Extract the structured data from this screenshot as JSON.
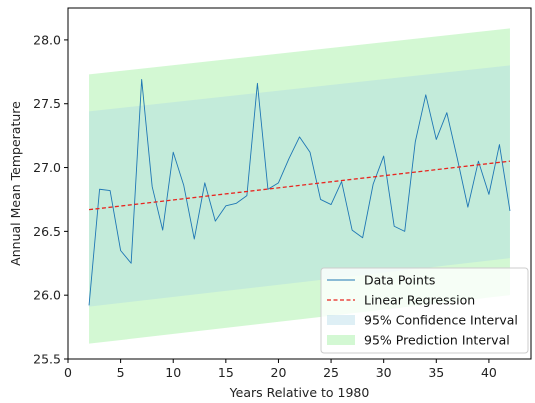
{
  "chart_data": {
    "type": "line",
    "xlabel": "Years Relative to 1980",
    "ylabel": "Annual Mean Temperature",
    "xlim": [
      0,
      44
    ],
    "ylim": [
      25.5,
      28.25
    ],
    "xticks": [
      0,
      5,
      10,
      15,
      20,
      25,
      30,
      35,
      40
    ],
    "yticks": [
      25.5,
      26.0,
      26.5,
      27.0,
      27.5,
      28.0
    ],
    "xtick_labels": [
      "0",
      "5",
      "10",
      "15",
      "20",
      "25",
      "30",
      "35",
      "40"
    ],
    "ytick_labels": [
      "25.5",
      "26.0",
      "26.5",
      "27.0",
      "27.5",
      "28.0"
    ],
    "grid": false,
    "legend_position": "lower right",
    "series": [
      {
        "name": "Data Points",
        "kind": "line",
        "color": "#1f77b4",
        "x": [
          2,
          3,
          4,
          5,
          6,
          7,
          8,
          9,
          10,
          11,
          12,
          13,
          14,
          15,
          16,
          17,
          18,
          19,
          20,
          21,
          22,
          23,
          24,
          25,
          26,
          27,
          28,
          29,
          30,
          31,
          32,
          33,
          34,
          35,
          36,
          37,
          38,
          39,
          40,
          41,
          42
        ],
        "y": [
          25.92,
          26.83,
          26.82,
          26.35,
          26.25,
          27.69,
          26.85,
          26.51,
          27.12,
          26.86,
          26.44,
          26.88,
          26.58,
          26.7,
          26.72,
          26.78,
          27.66,
          26.83,
          26.88,
          27.07,
          27.24,
          27.12,
          26.75,
          26.71,
          26.89,
          26.51,
          26.45,
          26.87,
          27.09,
          26.54,
          26.5,
          27.2,
          27.57,
          27.22,
          27.43,
          27.07,
          26.69,
          27.05,
          26.79,
          27.18,
          26.66
        ]
      },
      {
        "name": "Linear Regression",
        "kind": "dashed-line",
        "color": "#e8251f",
        "x": [
          2,
          42
        ],
        "y": [
          26.67,
          27.05
        ]
      },
      {
        "name": "95% Confidence Interval",
        "kind": "band",
        "color": "#add8e6",
        "x": [
          2,
          42
        ],
        "lower": [
          25.91,
          26.29
        ],
        "upper": [
          27.44,
          27.8
        ]
      },
      {
        "name": "95% Prediction Interval",
        "kind": "band",
        "color": "#90ee90",
        "x": [
          2,
          42
        ],
        "lower": [
          25.62,
          26.0
        ],
        "upper": [
          27.73,
          28.09
        ]
      }
    ],
    "legend": [
      {
        "label": "Data Points",
        "kind": "line",
        "color": "#1f77b4"
      },
      {
        "label": "Linear Regression",
        "kind": "dashed-line",
        "color": "#e8251f"
      },
      {
        "label": "95% Confidence Interval",
        "kind": "patch",
        "color": "#add8e6"
      },
      {
        "label": "95% Prediction Interval",
        "kind": "patch",
        "color": "#90ee90"
      }
    ]
  }
}
